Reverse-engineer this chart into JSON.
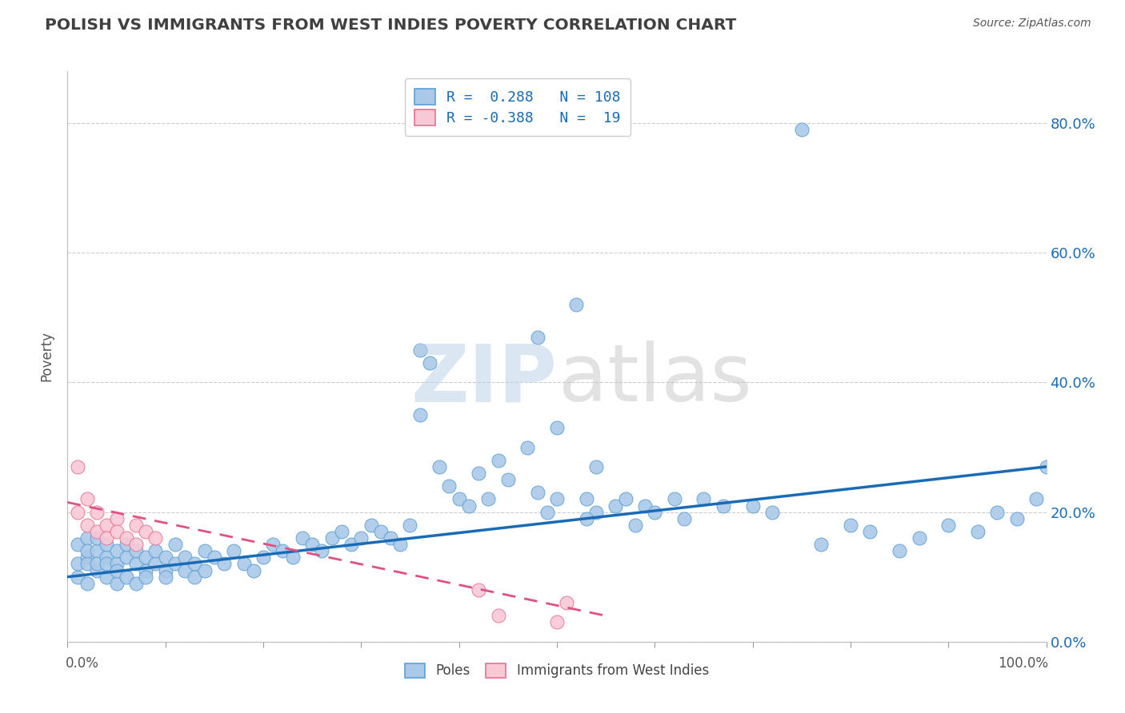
{
  "title": "POLISH VS IMMIGRANTS FROM WEST INDIES POVERTY CORRELATION CHART",
  "source": "Source: ZipAtlas.com",
  "ylabel": "Poverty",
  "yticks": [
    0.0,
    0.2,
    0.4,
    0.6,
    0.8
  ],
  "ytick_labels": [
    "0.0%",
    "20.0%",
    "40.0%",
    "60.0%",
    "80.0%"
  ],
  "xlim": [
    0.0,
    1.0
  ],
  "ylim": [
    0.0,
    0.88
  ],
  "blue_R": 0.288,
  "blue_N": 108,
  "pink_R": -0.388,
  "pink_N": 19,
  "blue_color": "#aac9e8",
  "blue_edge_color": "#5a9fd4",
  "blue_line_color": "#1a6bb5",
  "pink_color": "#f9c8d5",
  "pink_edge_color": "#e87090",
  "pink_line_color": "#e05080",
  "background_color": "#ffffff",
  "grid_color": "#cccccc",
  "title_color": "#404040",
  "source_color": "#555555",
  "ylabel_color": "#555555",
  "tick_color": "#1a6bb5",
  "xtick_color": "#555555",
  "legend_label_blue": "Poles",
  "legend_label_pink": "Immigrants from West Indies",
  "blue_x": [
    0.01,
    0.01,
    0.01,
    0.02,
    0.02,
    0.02,
    0.02,
    0.02,
    0.03,
    0.03,
    0.03,
    0.03,
    0.04,
    0.04,
    0.04,
    0.04,
    0.05,
    0.05,
    0.05,
    0.05,
    0.06,
    0.06,
    0.06,
    0.07,
    0.07,
    0.07,
    0.08,
    0.08,
    0.08,
    0.09,
    0.09,
    0.1,
    0.1,
    0.1,
    0.11,
    0.11,
    0.12,
    0.12,
    0.13,
    0.13,
    0.14,
    0.14,
    0.15,
    0.16,
    0.17,
    0.18,
    0.19,
    0.2,
    0.21,
    0.22,
    0.23,
    0.24,
    0.25,
    0.26,
    0.27,
    0.28,
    0.29,
    0.3,
    0.31,
    0.32,
    0.33,
    0.34,
    0.35,
    0.36,
    0.38,
    0.39,
    0.4,
    0.41,
    0.42,
    0.43,
    0.44,
    0.45,
    0.47,
    0.48,
    0.49,
    0.5,
    0.52,
    0.53,
    0.54,
    0.56,
    0.57,
    0.58,
    0.59,
    0.6,
    0.62,
    0.63,
    0.65,
    0.67,
    0.7,
    0.72,
    0.75,
    0.77,
    0.8,
    0.82,
    0.85,
    0.87,
    0.9,
    0.93,
    0.95,
    0.97,
    0.99,
    1.0,
    0.37,
    0.36,
    0.48,
    0.5,
    0.54,
    0.53
  ],
  "blue_y": [
    0.12,
    0.15,
    0.1,
    0.13,
    0.16,
    0.12,
    0.09,
    0.14,
    0.14,
    0.11,
    0.16,
    0.12,
    0.13,
    0.1,
    0.15,
    0.12,
    0.12,
    0.09,
    0.14,
    0.11,
    0.13,
    0.1,
    0.15,
    0.12,
    0.09,
    0.14,
    0.11,
    0.13,
    0.1,
    0.12,
    0.14,
    0.11,
    0.13,
    0.1,
    0.12,
    0.15,
    0.11,
    0.13,
    0.12,
    0.1,
    0.14,
    0.11,
    0.13,
    0.12,
    0.14,
    0.12,
    0.11,
    0.13,
    0.15,
    0.14,
    0.13,
    0.16,
    0.15,
    0.14,
    0.16,
    0.17,
    0.15,
    0.16,
    0.18,
    0.17,
    0.16,
    0.15,
    0.18,
    0.35,
    0.27,
    0.24,
    0.22,
    0.21,
    0.26,
    0.22,
    0.28,
    0.25,
    0.3,
    0.47,
    0.2,
    0.33,
    0.52,
    0.22,
    0.27,
    0.21,
    0.22,
    0.18,
    0.21,
    0.2,
    0.22,
    0.19,
    0.22,
    0.21,
    0.21,
    0.2,
    0.79,
    0.15,
    0.18,
    0.17,
    0.14,
    0.16,
    0.18,
    0.17,
    0.2,
    0.19,
    0.22,
    0.27,
    0.43,
    0.45,
    0.23,
    0.22,
    0.2,
    0.19
  ],
  "pink_x": [
    0.01,
    0.01,
    0.02,
    0.02,
    0.03,
    0.03,
    0.04,
    0.04,
    0.05,
    0.05,
    0.06,
    0.07,
    0.07,
    0.08,
    0.09,
    0.42,
    0.44,
    0.5,
    0.51
  ],
  "pink_y": [
    0.27,
    0.2,
    0.22,
    0.18,
    0.2,
    0.17,
    0.18,
    0.16,
    0.19,
    0.17,
    0.16,
    0.18,
    0.15,
    0.17,
    0.16,
    0.08,
    0.04,
    0.03,
    0.06
  ],
  "blue_line_x": [
    0.0,
    1.0
  ],
  "blue_line_y": [
    0.1,
    0.27
  ],
  "pink_line_x": [
    0.0,
    0.55
  ],
  "pink_line_y": [
    0.215,
    0.04
  ]
}
